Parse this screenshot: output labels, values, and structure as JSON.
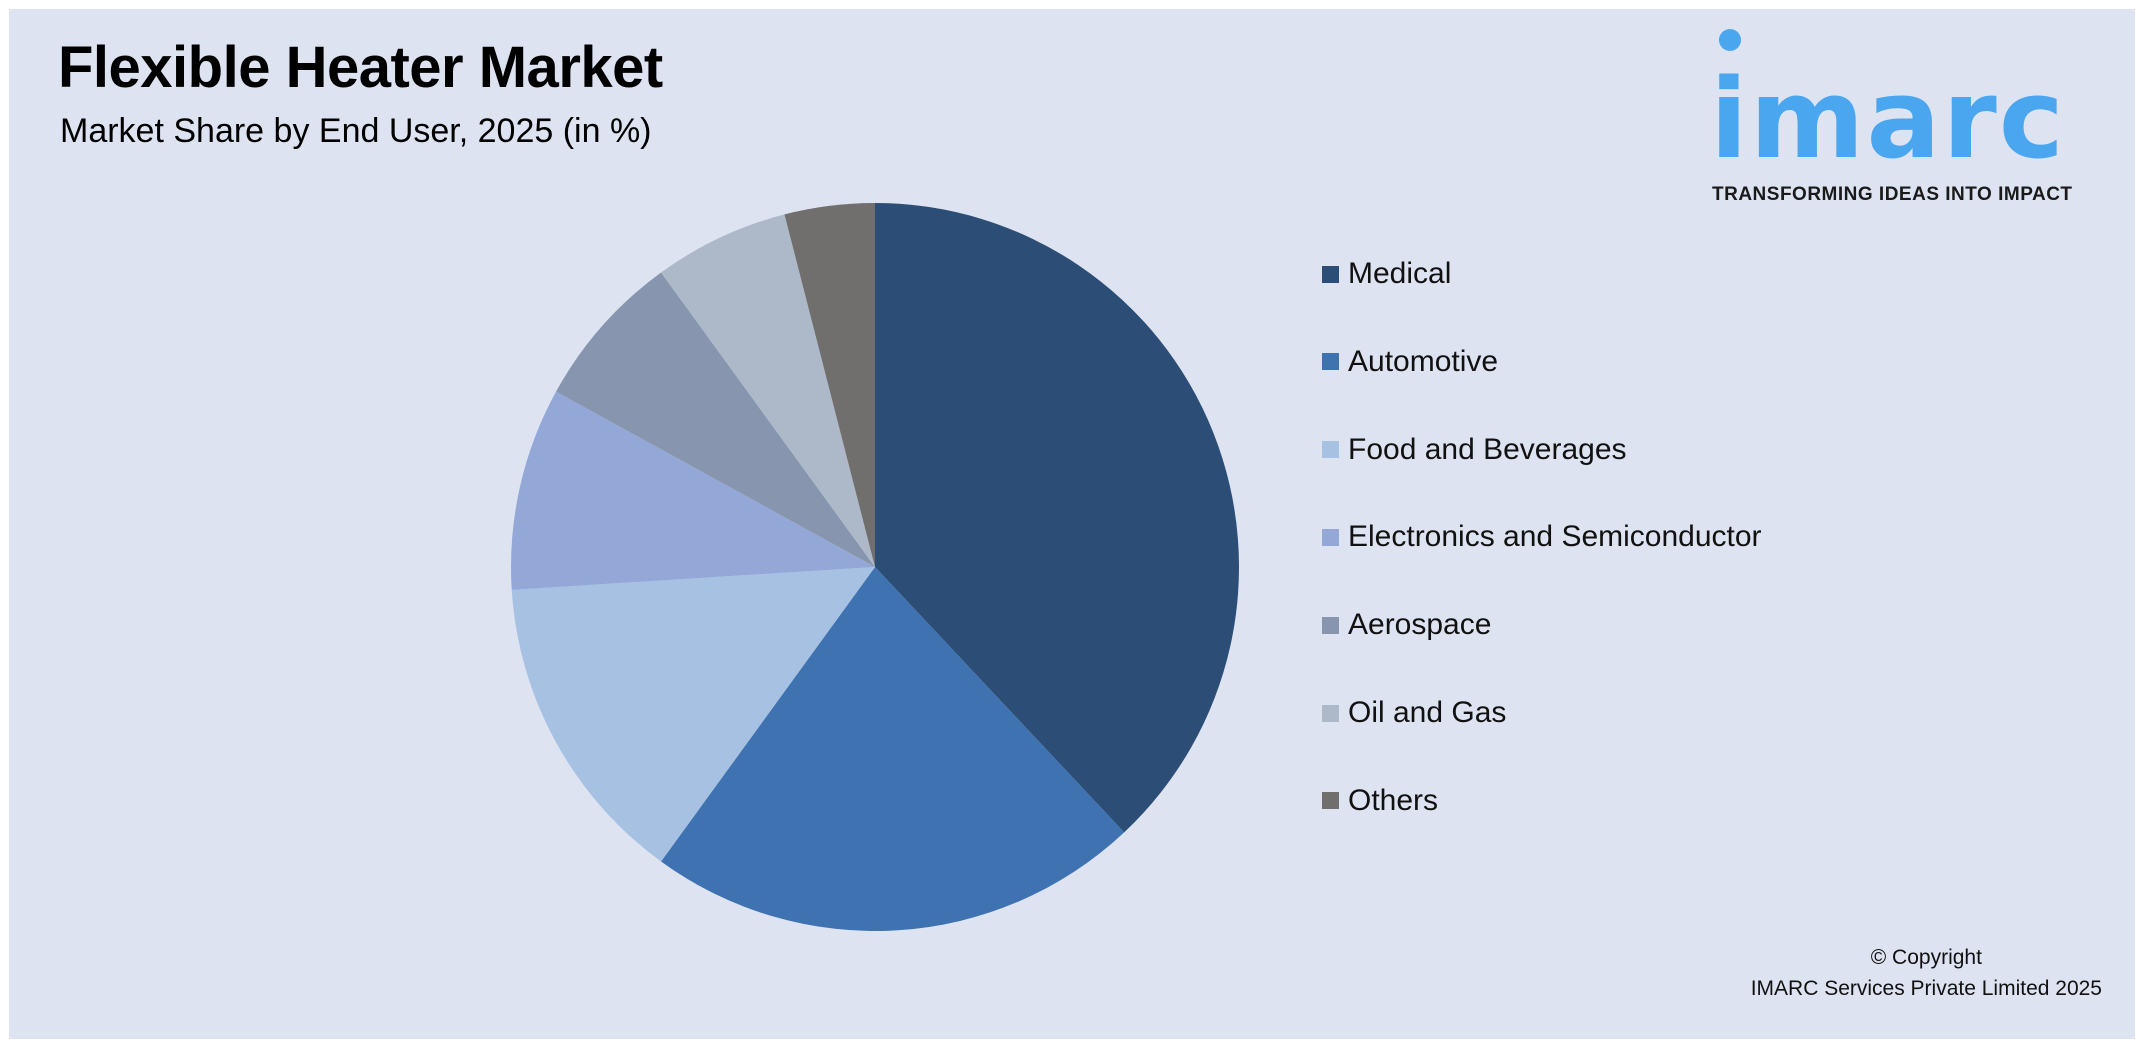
{
  "header": {
    "title": "Flexible Heater Market",
    "subtitle": "Market Share by End User, 2025 (in %)"
  },
  "logo": {
    "wordmark": "imarc",
    "tagline": "TRANSFORMING IDEAS INTO IMPACT",
    "color": "#4aa6ef"
  },
  "chart_data": {
    "type": "pie",
    "title": "Flexible Heater Market",
    "subtitle": "Market Share by End User, 2025 (in %)",
    "legend_position": "right",
    "start": "top, clockwise",
    "categories": [
      "Medical",
      "Automotive",
      "Food and Beverages",
      "Electronics and Semiconductor",
      "Aerospace",
      "Oil and Gas",
      "Others"
    ],
    "values": [
      38,
      22,
      14,
      9,
      7,
      6,
      4
    ],
    "colors": [
      "#2c4d75",
      "#3f72b0",
      "#a6c1e2",
      "#94a8d8",
      "#8796ae",
      "#adb8c9",
      "#716e6e"
    ]
  },
  "footer": {
    "copyright": "© Copyright",
    "company": "IMARC Services Private Limited 2025"
  }
}
